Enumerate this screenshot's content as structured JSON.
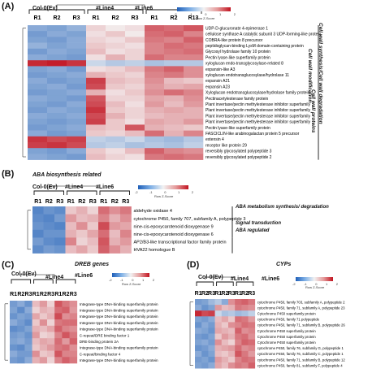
{
  "panels": [
    {
      "id": "A",
      "label": "(A)",
      "section_title": "",
      "groups": [
        "Col-0(Ev)",
        "#Line4",
        "#Line6"
      ],
      "replicates": [
        "R1",
        "R2",
        "R3",
        "R1",
        "R2",
        "R3",
        "R1",
        "R2",
        "R13"
      ],
      "legend": {
        "ticks": [
          "-2",
          "-1",
          "0",
          "1",
          "2"
        ],
        "title": "Row Z-Score"
      },
      "genes": [
        "UDP-D-glucuronate 4-epimerase 1",
        "cellulose synthase A catalytic subunit 3 UDP-forming-like protein",
        "COBRA-like protein 8 precursor",
        "peptidoglycan-binding LysM domain-containing protein",
        "Glycosyl hydrolase family 10 protein",
        "Pectin lyase-like superfamily protein",
        "xyloglucan endo-transglycosylase-related 8",
        "expansin-like A3",
        "xyloglucan endotransglucosylase/hydrolase 11",
        "expansin A21",
        "expansin A23",
        "Xyloglucan endotransglucosylase/hydrolase family protein",
        "Pectinacetylesterase family protein",
        "Plant invertase/pectin methylesterase inhibitor superfamily",
        "Plant invertase/pectin methylesterase inhibitor superfamily",
        "Plant invertase/pectin methylesterase inhibitor superfamily",
        "Plant invertase/pectin methylesterase inhibitor superfamily",
        "Pectin lyase-like superfamily protein",
        "FASCICLIN-like arabinogalactan protein 5 precursor",
        "extensin 4",
        "receptor like protein 29",
        "reversibly glycosylated polypeptide 3",
        "reversibly glycosylated polypeptide 2"
      ],
      "categories": [
        "Cell wall synthesis/Cell wall degradation",
        "Cell wall modification",
        "Cell wall proteins"
      ],
      "matrix": [
        [
          -1.0,
          -1.1,
          -0.9,
          0.3,
          0.1,
          0.2,
          1.3,
          1.2,
          1.4
        ],
        [
          -1.2,
          -1.0,
          -1.1,
          0.2,
          0.4,
          0.1,
          1.2,
          1.3,
          1.0
        ],
        [
          -1.1,
          -1.2,
          -1.0,
          0.3,
          0.2,
          0.4,
          1.1,
          1.0,
          1.3
        ],
        [
          -0.9,
          -1.1,
          -1.0,
          0.4,
          0.3,
          0.2,
          1.0,
          1.2,
          1.1
        ],
        [
          -1.2,
          -1.0,
          -1.1,
          0.5,
          0.2,
          0.3,
          1.0,
          1.1,
          1.2
        ],
        [
          -1.0,
          -1.1,
          -1.2,
          0.2,
          0.6,
          0.3,
          1.2,
          1.0,
          1.0
        ],
        [
          1.8,
          1.9,
          1.7,
          -0.4,
          -0.6,
          -0.5,
          -0.7,
          -0.6,
          -0.6
        ],
        [
          -1.1,
          -1.0,
          -1.2,
          0.2,
          0.3,
          0.5,
          1.1,
          1.3,
          0.9
        ],
        [
          -1.2,
          -1.1,
          -1.0,
          0.6,
          0.4,
          0.3,
          1.0,
          1.1,
          0.9
        ],
        [
          -1.0,
          -1.2,
          -1.1,
          1.6,
          0.5,
          0.4,
          0.9,
          0.5,
          0.4
        ],
        [
          -1.1,
          -1.0,
          -1.2,
          1.5,
          0.4,
          0.3,
          0.8,
          0.6,
          0.7
        ],
        [
          -1.2,
          -1.1,
          -1.0,
          0.6,
          0.2,
          0.4,
          0.9,
          1.2,
          1.0
        ],
        [
          -1.0,
          -1.1,
          -1.2,
          1.4,
          0.3,
          0.3,
          0.7,
          0.6,
          0.9
        ],
        [
          -1.1,
          -1.2,
          -1.0,
          1.5,
          0.5,
          0.2,
          0.8,
          0.5,
          0.8
        ],
        [
          -1.2,
          -1.0,
          -1.1,
          1.7,
          0.4,
          0.3,
          0.6,
          0.7,
          0.6
        ],
        [
          -1.0,
          -1.1,
          -1.0,
          1.5,
          0.6,
          0.3,
          0.5,
          0.6,
          0.6
        ],
        [
          -1.1,
          -1.2,
          -1.1,
          1.6,
          0.4,
          0.2,
          0.7,
          0.6,
          0.8
        ],
        [
          -1.2,
          -1.1,
          -1.0,
          0.5,
          0.4,
          1.4,
          0.6,
          0.5,
          0.4
        ],
        [
          -1.0,
          -1.2,
          -1.1,
          0.4,
          0.3,
          0.5,
          1.2,
          0.6,
          1.0
        ],
        [
          1.7,
          1.5,
          1.6,
          -0.5,
          -0.6,
          -0.4,
          -0.7,
          -0.8,
          -0.6
        ],
        [
          1.6,
          1.7,
          1.5,
          -0.6,
          -0.5,
          -0.7,
          -0.6,
          -0.7,
          -0.5
        ],
        [
          -1.1,
          -1.2,
          -1.0,
          0.4,
          0.2,
          0.5,
          1.3,
          1.0,
          0.9
        ],
        [
          -1.0,
          -1.1,
          -1.2,
          0.5,
          0.3,
          0.2,
          1.1,
          1.2,
          1.1
        ]
      ]
    },
    {
      "id": "B",
      "label": "(B)",
      "section_title": "ABA biosynthesis related",
      "groups": [
        "Col-0(Ev)",
        "#Line4",
        "#Line6"
      ],
      "replicates": [
        "R1",
        "R2",
        "R3",
        "R1",
        "R2",
        "R3",
        "R1",
        "R2",
        "R3"
      ],
      "legend": {
        "ticks": [
          "-2",
          "-1",
          "0",
          "1",
          "2"
        ],
        "title": "Row Z-Score"
      },
      "genes": [
        "aldehyde oxidase 4",
        "cytochrome P450, family 707, subfamily A, polypeptide 3",
        "nine-cis-epoxycarotenoid dioxygenase 9",
        "nine-cis-epoxycarotenoid dioxygenase 6",
        "AP2/B3-like transcriptional factor family protein",
        "HVA22 homologue B"
      ],
      "categories": [
        "ABA metabolism synthesis/ degradation",
        "Signal transduction",
        "ABA regulated"
      ],
      "matrix": [
        [
          -1.5,
          -1.3,
          -1.4,
          0.4,
          0.6,
          0.3,
          1.2,
          0.9,
          1.1
        ],
        [
          -1.4,
          -1.5,
          -1.2,
          0.8,
          0.5,
          0.6,
          1.0,
          0.6,
          0.9
        ],
        [
          -1.3,
          -1.4,
          -1.5,
          0.5,
          0.9,
          0.4,
          1.5,
          0.8,
          0.7
        ],
        [
          -1.5,
          -1.3,
          -1.3,
          0.6,
          0.4,
          0.7,
          1.2,
          0.5,
          1.0
        ],
        [
          -1.2,
          -1.4,
          -1.5,
          1.0,
          0.3,
          0.5,
          1.4,
          0.6,
          0.8
        ],
        [
          -1.4,
          -1.2,
          -1.3,
          0.5,
          0.7,
          0.4,
          1.3,
          0.9,
          0.6
        ]
      ]
    },
    {
      "id": "C",
      "label": "(C)",
      "section_title": "DREB genes",
      "groups": [
        "Col-0(Ev)",
        "#Line4",
        "#Line6"
      ],
      "replicates": [
        "R1",
        "R2",
        "R3",
        "R1",
        "R2",
        "R3",
        "R1",
        "R2",
        "R3"
      ],
      "legend": {
        "ticks": [
          "-2",
          "-1",
          "0",
          "1",
          "2"
        ],
        "title": "Row Z-Score"
      },
      "genes": [
        "Integrase-type DNA-binding superfamily protein",
        "Integrase-type DNA-binding superfamily protein",
        "Integrase-type DNA-binding superfamily protein",
        "Integrase-type DNA-binding superfamily protein",
        "Integrase-type DNA-binding superfamily protein",
        "C-repeat/DRE binding factor 1",
        "DRE-binding protein 2A",
        "Integrase-type DNA-binding superfamily protein",
        "C-repeat/binding factor 4",
        "Integrase-type DNA-binding superfamily protein"
      ],
      "categories": [],
      "matrix": [
        [
          -1.2,
          -1.0,
          -1.3,
          0.5,
          0.8,
          0.3,
          1.4,
          1.1,
          0.9
        ],
        [
          -1.1,
          -1.4,
          -1.0,
          0.3,
          0.6,
          0.5,
          1.2,
          1.3,
          0.8
        ],
        [
          -1.3,
          -1.1,
          -1.2,
          0.7,
          0.4,
          0.6,
          1.5,
          0.9,
          1.0
        ],
        [
          -1.0,
          -1.2,
          -1.4,
          0.4,
          0.9,
          0.3,
          1.1,
          1.2,
          1.2
        ],
        [
          -1.4,
          -1.3,
          -1.1,
          0.6,
          0.5,
          0.7,
          1.3,
          1.0,
          0.9
        ],
        [
          -1.2,
          -1.1,
          -1.3,
          0.8,
          0.3,
          0.4,
          1.0,
          1.4,
          1.1
        ],
        [
          -1.1,
          -1.0,
          -1.2,
          0.5,
          0.7,
          0.6,
          1.2,
          0.8,
          1.3
        ],
        [
          -1.3,
          -1.4,
          -1.1,
          0.4,
          0.6,
          0.8,
          1.1,
          1.2,
          0.9
        ],
        [
          -1.0,
          -1.2,
          -1.2,
          0.9,
          0.4,
          0.5,
          1.4,
          1.0,
          1.0
        ],
        [
          -1.2,
          -1.3,
          -1.0,
          0.6,
          0.8,
          0.3,
          1.0,
          1.3,
          1.1
        ]
      ]
    },
    {
      "id": "D",
      "label": "(D)",
      "section_title": "CYPs",
      "groups": [
        "Col-0(Ev)",
        "#Line4",
        "#Line6"
      ],
      "replicates": [
        "R1",
        "R2",
        "R3",
        "R1",
        "R2",
        "R3",
        "R1",
        "R2",
        "R3"
      ],
      "legend": {
        "ticks": [
          "-2",
          "-1",
          "0",
          "1",
          "2"
        ],
        "title": "Row Z-Score"
      },
      "genes": [
        "cytochrome P450, family 703, subfamily A, polypeptide 2",
        "cytochrome P450, family 71, subfamily A, polypeptide 23",
        "Cytochrome P450 superfamily protein",
        "cytochrome P450, family 71 polypeptide",
        "cytochrome P450, family 71, subfamily B, polypeptide 26",
        "Cytochrome P450 superfamily protein",
        "Cytochrome P450 superfamily protein",
        "Cytochrome P450 superfamily protein",
        "cytochrome P450, family 76, subfamily G, polypeptide 1",
        "cytochrome P450, family 76, subfamily C, polypeptide 1",
        "cytochrome P450, family 71, subfamily B, polypeptide 12",
        "cytochrome P450, family 81, subfamily F, polypeptide 4"
      ],
      "categories": [],
      "matrix": [
        [
          -1.2,
          -1.1,
          -0.8,
          -0.6,
          -1.0,
          0.9,
          1.2,
          1.3,
          1.1
        ],
        [
          -1.0,
          -1.3,
          -1.1,
          0.8,
          0.5,
          0.6,
          1.1,
          1.0,
          0.9
        ],
        [
          1.8,
          1.5,
          1.6,
          -0.4,
          -0.7,
          -0.6,
          -0.8,
          -0.7,
          -0.5
        ],
        [
          -1.1,
          -1.2,
          -1.0,
          0.5,
          0.7,
          0.4,
          1.2,
          1.1,
          0.8
        ],
        [
          -1.3,
          -1.0,
          -1.2,
          0.6,
          0.4,
          0.9,
          1.0,
          1.2,
          1.1
        ],
        [
          -1.0,
          -1.1,
          -1.3,
          0.7,
          0.6,
          0.5,
          1.3,
          0.9,
          1.0
        ],
        [
          -1.2,
          -1.3,
          -1.1,
          0.4,
          0.8,
          0.6,
          1.1,
          1.2,
          0.9
        ],
        [
          -1.1,
          -1.0,
          -1.2,
          0.9,
          0.5,
          0.3,
          1.0,
          1.3,
          1.2
        ],
        [
          -1.3,
          -1.2,
          -1.0,
          0.6,
          0.7,
          0.8,
          1.2,
          0.9,
          1.0
        ],
        [
          -1.0,
          -1.3,
          -1.1,
          0.5,
          0.4,
          0.6,
          1.4,
          1.1,
          0.8
        ],
        [
          -1.2,
          -1.1,
          -1.3,
          0.8,
          0.6,
          0.4,
          1.0,
          1.2,
          1.1
        ],
        [
          -1.1,
          -1.2,
          -1.0,
          0.7,
          0.5,
          0.9,
          1.1,
          1.0,
          1.3
        ]
      ]
    }
  ]
}
